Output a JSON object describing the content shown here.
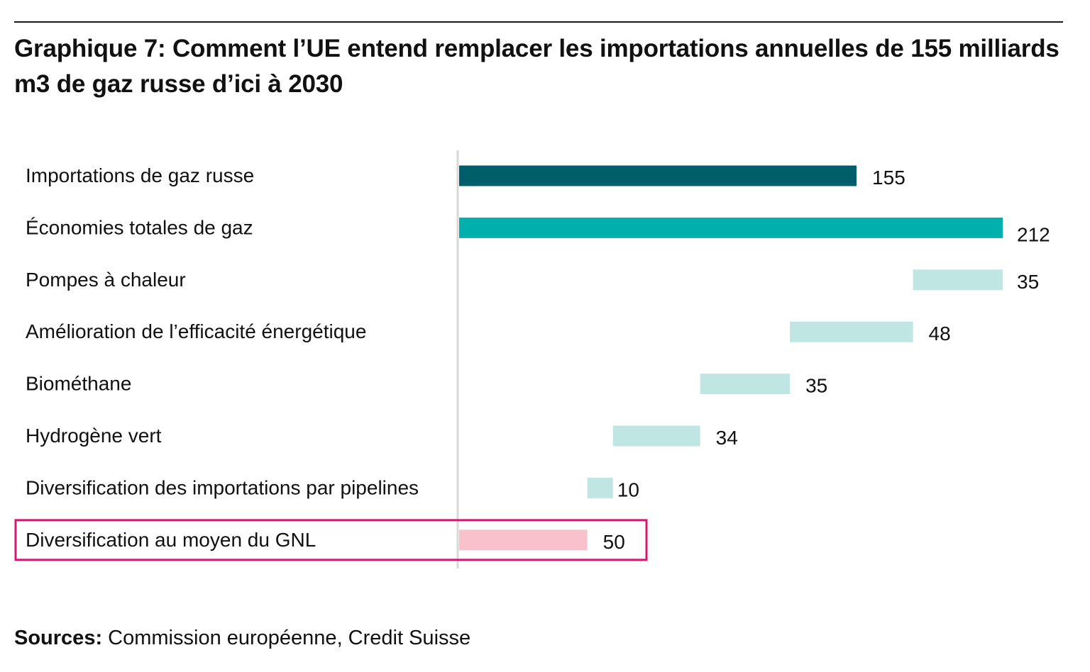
{
  "title": "Graphique 7: Comment l’UE entend remplacer les importations annuelles de 155 milliards m3 de gaz russe d’ici à 2030",
  "sources": {
    "label": "Sources:",
    "text": " Commission européenne, Credit Suisse"
  },
  "colors": {
    "dark_teal": "#005e6a",
    "teal": "#00b0ad",
    "light_teal": "#bfe6e3",
    "pink": "#f8c1cb",
    "highlight_border": "#d6186e",
    "axis": "#d8d8d8"
  },
  "chart_data": {
    "type": "bar",
    "subtype": "waterfall",
    "orientation": "horizontal",
    "title": "Graphique 7: Comment l’UE entend remplacer les importations annuelles de 155 milliards m3 de gaz russe d’ici à 2030",
    "xlabel": "",
    "ylabel": "",
    "xlim": [
      0,
      212
    ],
    "grid": false,
    "legend": false,
    "categories": [
      "Importations de gaz russe",
      "Économies totales de gaz",
      "Pompes à chaleur",
      "Amélioration de l’efficacité énergétique",
      "Biométhane",
      "Hydrogène vert",
      "Diversification des importations par pipelines",
      "Diversification au moyen du GNL"
    ],
    "values": [
      155,
      212,
      35,
      48,
      35,
      34,
      10,
      50
    ],
    "bar_start": [
      0,
      0,
      177,
      129,
      94,
      60,
      50,
      0
    ],
    "bar_end": [
      155,
      212,
      212,
      177,
      129,
      94,
      60,
      50
    ],
    "labels": [
      "155",
      "212",
      "35",
      "48",
      "35",
      "34",
      "10",
      "50"
    ],
    "bar_colors": [
      "dark_teal",
      "teal",
      "light_teal",
      "light_teal",
      "light_teal",
      "light_teal",
      "light_teal",
      "pink"
    ],
    "highlighted_category": "Diversification au moyen du GNL"
  }
}
